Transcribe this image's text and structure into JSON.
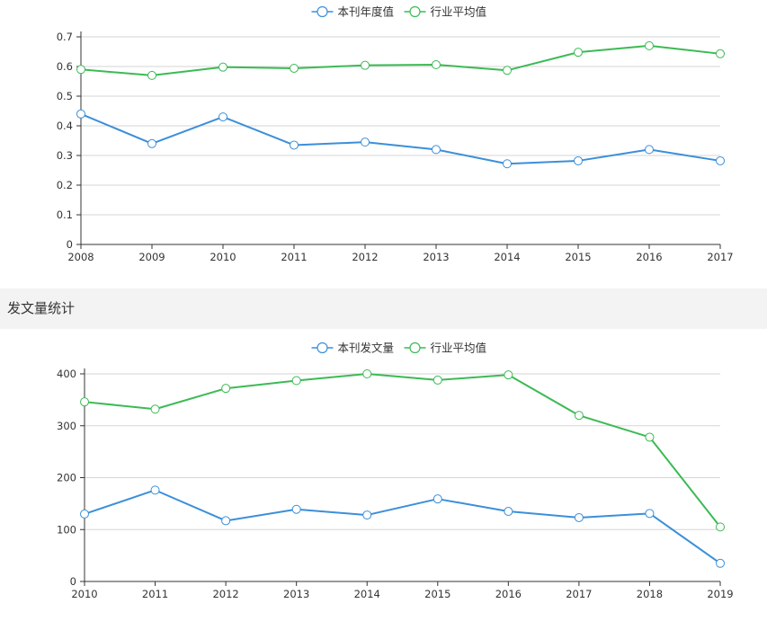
{
  "chart_data": [
    {
      "type": "line",
      "categories": [
        "2008",
        "2009",
        "2010",
        "2011",
        "2012",
        "2013",
        "2014",
        "2015",
        "2016",
        "2017"
      ],
      "series": [
        {
          "name": "本刊年度值",
          "color": "#3b8fd9",
          "values": [
            0.44,
            0.34,
            0.43,
            0.335,
            0.345,
            0.32,
            0.272,
            0.282,
            0.32,
            0.282
          ]
        },
        {
          "name": "行业平均值",
          "color": "#3cba54",
          "values": [
            0.59,
            0.57,
            0.598,
            0.594,
            0.604,
            0.606,
            0.587,
            0.648,
            0.67,
            0.643
          ]
        }
      ],
      "yticks": [
        "0",
        "0.1",
        "0.2",
        "0.3",
        "0.4",
        "0.5",
        "0.6",
        "0.7"
      ],
      "ylim": [
        0,
        0.7
      ],
      "grid": true,
      "legend": "top-center"
    },
    {
      "type": "line",
      "categories": [
        "2010",
        "2011",
        "2012",
        "2013",
        "2014",
        "2015",
        "2016",
        "2017",
        "2018",
        "2019"
      ],
      "series": [
        {
          "name": "本刊发文量",
          "color": "#3b8fd9",
          "values": [
            130,
            176,
            117,
            139,
            128,
            159,
            135,
            123,
            131,
            35
          ]
        },
        {
          "name": "行业平均值",
          "color": "#3cba54",
          "values": [
            346,
            332,
            372,
            387,
            400,
            388,
            398,
            320,
            278,
            105
          ]
        }
      ],
      "yticks": [
        "0",
        "100",
        "200",
        "300",
        "400"
      ],
      "ylim": [
        0,
        400
      ],
      "grid": true,
      "legend": "top-center"
    }
  ],
  "section": {
    "title": "发文量统计"
  }
}
